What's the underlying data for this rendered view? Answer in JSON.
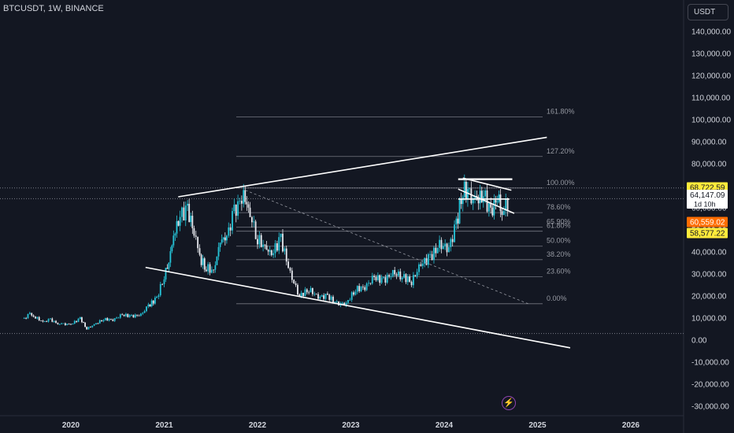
{
  "header": {
    "symbol": "BTCUSDT, 1W, BINANCE",
    "currency_label": "USDT"
  },
  "icons": {
    "flash": "lightning-bolt-icon"
  },
  "colors": {
    "background": "#131722",
    "up": "#26c6da",
    "down": "#e8eaf0",
    "text": "#d1d4dc",
    "grid": "#787b86",
    "fib": "#9598a1",
    "trendline": "#ffffff",
    "price_tag_high": "#ffeb3b",
    "price_tag_low": "#ff6d00",
    "price_tag_mid": "#ffffff"
  },
  "chart_data": {
    "type": "candlestick",
    "x_axis": {
      "labels": [
        "2020",
        "2021",
        "2022",
        "2023",
        "2024",
        "2025",
        "2026"
      ]
    },
    "y_axis": {
      "labels": [
        "140,000.00",
        "130,000.00",
        "120,000.00",
        "110,000.00",
        "100,000.00",
        "90,000.00",
        "80,000.00",
        "70,000.00",
        "60,000.00",
        "50,000.00",
        "40,000.00",
        "30,000.00",
        "20,000.00",
        "10,000.00",
        "0.00",
        "-10,000.00",
        "-20,000.00",
        "-30,000.00"
      ],
      "range": [
        -30000,
        140000
      ]
    },
    "price_tags": [
      {
        "label": "68,722.59",
        "value": 68722.59,
        "kind": "high"
      },
      {
        "label": "64,147.09",
        "value": 64147.09,
        "kind": "last",
        "sub": "1d 10h"
      },
      {
        "label": "60,559.02",
        "value": 60559.02,
        "kind": "low"
      },
      {
        "label": "58,577.22",
        "value": 58577.22,
        "kind": "fib"
      }
    ],
    "fib_levels": [
      {
        "label": "161.80%",
        "value": 101300
      },
      {
        "label": "127.20%",
        "value": 83300
      },
      {
        "label": "100.00%",
        "value": 69000
      },
      {
        "label": "78.60%",
        "value": 57800
      },
      {
        "label": "65.90%",
        "value": 51200
      },
      {
        "label": "61.80%",
        "value": 49400
      },
      {
        "label": "50.00%",
        "value": 42600
      },
      {
        "label": "38.20%",
        "value": 36500
      },
      {
        "label": "23.60%",
        "value": 28800
      },
      {
        "label": "0.00%",
        "value": 16500
      }
    ],
    "trendlines": [
      {
        "name": "upper-channel",
        "points": [
          [
            2021.15,
            65000
          ],
          [
            2025.1,
            92000
          ]
        ]
      },
      {
        "name": "lower-channel",
        "points": [
          [
            2020.8,
            33000
          ],
          [
            2025.35,
            -3500
          ]
        ]
      },
      {
        "name": "fib-diagonal",
        "points": [
          [
            2021.87,
            68000
          ],
          [
            2024.9,
            16500
          ]
        ]
      },
      {
        "name": "flag-top",
        "points": [
          [
            2024.2,
            73500
          ],
          [
            2024.72,
            68000
          ]
        ]
      },
      {
        "name": "flag-bottom",
        "points": [
          [
            2024.15,
            68500
          ],
          [
            2024.75,
            57500
          ]
        ]
      },
      {
        "name": "range-top",
        "points": [
          [
            2024.15,
            73000
          ],
          [
            2024.73,
            73000
          ]
        ]
      },
      {
        "name": "range-mid",
        "points": [
          [
            2024.15,
            64000
          ],
          [
            2024.7,
            64000
          ]
        ]
      }
    ],
    "horizontal_dotted": [
      69000,
      64147.09,
      3000
    ],
    "series_weekly_close": [
      [
        2019.5,
        9800
      ],
      [
        2019.56,
        11800
      ],
      [
        2019.62,
        10400
      ],
      [
        2019.7,
        8200
      ],
      [
        2019.78,
        9300
      ],
      [
        2019.86,
        7400
      ],
      [
        2019.92,
        7200
      ],
      [
        2020.0,
        7200
      ],
      [
        2020.1,
        9800
      ],
      [
        2020.17,
        5200
      ],
      [
        2020.25,
        7000
      ],
      [
        2020.35,
        9500
      ],
      [
        2020.45,
        9200
      ],
      [
        2020.55,
        11500
      ],
      [
        2020.65,
        10800
      ],
      [
        2020.75,
        11500
      ],
      [
        2020.83,
        15500
      ],
      [
        2020.92,
        19000
      ],
      [
        2021.0,
        29000
      ],
      [
        2021.05,
        36000
      ],
      [
        2021.1,
        47000
      ],
      [
        2021.17,
        57000
      ],
      [
        2021.25,
        58500
      ],
      [
        2021.32,
        50000
      ],
      [
        2021.38,
        37000
      ],
      [
        2021.45,
        33000
      ],
      [
        2021.53,
        31000
      ],
      [
        2021.6,
        45000
      ],
      [
        2021.67,
        47000
      ],
      [
        2021.75,
        58000
      ],
      [
        2021.85,
        66000
      ],
      [
        2021.92,
        57000
      ],
      [
        2022.0,
        46000
      ],
      [
        2022.08,
        42000
      ],
      [
        2022.15,
        39000
      ],
      [
        2022.25,
        46000
      ],
      [
        2022.35,
        30000
      ],
      [
        2022.45,
        20000
      ],
      [
        2022.55,
        23000
      ],
      [
        2022.65,
        19500
      ],
      [
        2022.75,
        20000
      ],
      [
        2022.85,
        16500
      ],
      [
        2022.95,
        16600
      ],
      [
        2023.05,
        23000
      ],
      [
        2023.15,
        24000
      ],
      [
        2023.25,
        28500
      ],
      [
        2023.35,
        27000
      ],
      [
        2023.45,
        30500
      ],
      [
        2023.55,
        29000
      ],
      [
        2023.65,
        26500
      ],
      [
        2023.75,
        34500
      ],
      [
        2023.85,
        37500
      ],
      [
        2023.95,
        43000
      ],
      [
        2024.05,
        42000
      ],
      [
        2024.13,
        52000
      ],
      [
        2024.2,
        69000
      ],
      [
        2024.27,
        65000
      ],
      [
        2024.35,
        63000
      ],
      [
        2024.42,
        67000
      ],
      [
        2024.5,
        57000
      ],
      [
        2024.57,
        66000
      ],
      [
        2024.62,
        58000
      ],
      [
        2024.7,
        64147.09
      ]
    ]
  }
}
